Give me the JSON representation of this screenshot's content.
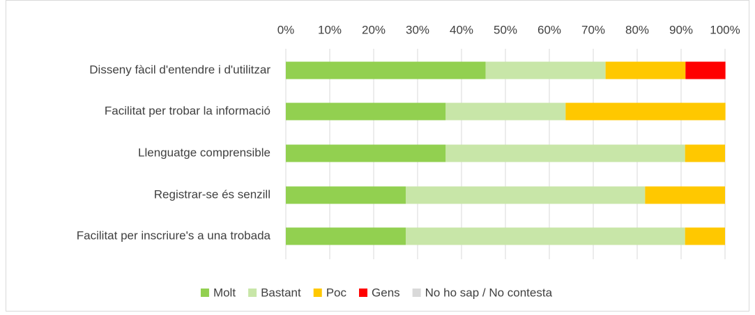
{
  "chart_data": {
    "type": "stacked-bar-horizontal",
    "categories": [
      "Disseny fàcil d'entendre i d'utilitzar",
      "Facilitat per trobar la informació",
      "Llenguatge comprensible",
      "Registrar-se és senzill",
      "Facilitat per inscriure's a una trobada"
    ],
    "series": [
      {
        "name": "Molt",
        "color": "#92d050",
        "values": [
          45.5,
          36.4,
          36.4,
          27.3,
          27.3
        ]
      },
      {
        "name": "Bastant",
        "color": "#c8e6a8",
        "values": [
          27.3,
          27.3,
          54.5,
          54.5,
          63.6
        ]
      },
      {
        "name": "Poc",
        "color": "#ffc800",
        "values": [
          18.2,
          36.4,
          9.1,
          18.2,
          9.1
        ]
      },
      {
        "name": "Gens",
        "color": "#ff0000",
        "values": [
          9.1,
          0,
          0,
          0,
          0
        ]
      },
      {
        "name": "No ho sap / No contesta",
        "color": "#d9d9d9",
        "values": [
          0,
          0,
          0,
          0,
          0
        ]
      }
    ],
    "xlim": [
      0,
      100
    ],
    "xticks": [
      {
        "value": 0,
        "label": "0%"
      },
      {
        "value": 10,
        "label": "10%"
      },
      {
        "value": 20,
        "label": "20%"
      },
      {
        "value": 30,
        "label": "30%"
      },
      {
        "value": 40,
        "label": "40%"
      },
      {
        "value": 50,
        "label": "50%"
      },
      {
        "value": 60,
        "label": "60%"
      },
      {
        "value": 70,
        "label": "70%"
      },
      {
        "value": 80,
        "label": "80%"
      },
      {
        "value": 90,
        "label": "90%"
      },
      {
        "value": 100,
        "label": "100%"
      }
    ],
    "grid": true,
    "legend": "bottom"
  }
}
